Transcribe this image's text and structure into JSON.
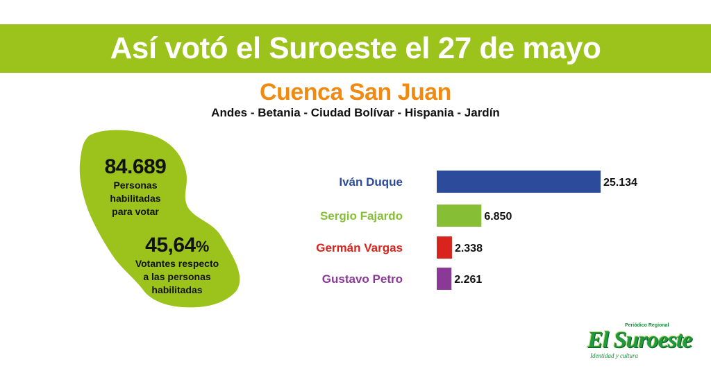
{
  "header": {
    "title": "Así votó el Suroeste el 27 de mayo",
    "subtitle": "Cuenca San Juan",
    "towns": "Andes - Betania - Ciudad Bolívar - Hispania - Jardín"
  },
  "stats": {
    "eligible_value": "84.689",
    "eligible_label_line1": "Personas",
    "eligible_label_line2": "habilitadas",
    "eligible_label_line3": "para votar",
    "turnout_value": "45,64",
    "turnout_unit": "%",
    "turnout_label_line1": "Votantes respecto",
    "turnout_label_line2": "a las personas",
    "turnout_label_line3": "habilitadas"
  },
  "colors": {
    "banner": "#9cc31b",
    "subtitle": "#f08a10",
    "map_fill": "#9cc31b"
  },
  "chart_data": {
    "type": "bar",
    "orientation": "horizontal",
    "categories": [
      "Iván Duque",
      "Sergio Fajardo",
      "Germán Vargas",
      "Gustavo Petro"
    ],
    "values": [
      25134,
      6850,
      2338,
      2261
    ],
    "value_labels": [
      "25.134",
      "6.850",
      "2.338",
      "2.261"
    ],
    "colors": [
      "#2c4b9b",
      "#86bf35",
      "#d8241c",
      "#8a3a96"
    ],
    "xlim": [
      0,
      25134
    ],
    "grid": false,
    "legend": "none"
  },
  "logo": {
    "superscript": "Periódico Regional",
    "name": "El Suroeste",
    "tagline": "Identidad y cultura"
  }
}
